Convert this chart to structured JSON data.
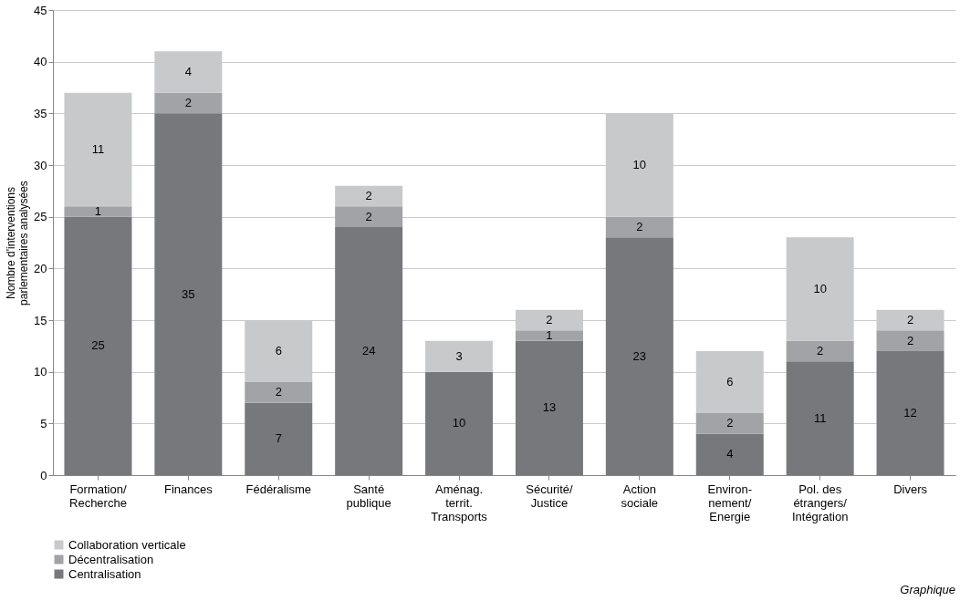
{
  "chart_data": {
    "type": "bar",
    "stacked": true,
    "categories": [
      "Formation/\nRecherche",
      "Finances",
      "Fédéralisme",
      "Santé\npublique",
      "Aménag.\nterrit.\nTransports",
      "Sécurité/\nJustice",
      "Action\nsociale",
      "Environ-\nnement/\nEnergie",
      "Pol. des\nétrangers/\nIntégration",
      "Divers"
    ],
    "series": [
      {
        "name": "Centralisation",
        "color": "#77787b",
        "values": [
          25,
          35,
          7,
          24,
          10,
          13,
          23,
          4,
          11,
          12
        ]
      },
      {
        "name": "Décentralisation",
        "color": "#a2a3a6",
        "values": [
          1,
          2,
          2,
          2,
          null,
          1,
          2,
          2,
          2,
          2
        ]
      },
      {
        "name": "Collaboration verticale",
        "color": "#c8c9cb",
        "values": [
          11,
          4,
          6,
          2,
          3,
          2,
          10,
          6,
          10,
          2
        ]
      }
    ],
    "ylabel": "Nombre d'interventions\nparlementaires analysées",
    "ylim": [
      0,
      45
    ],
    "yticks": [
      0,
      5,
      10,
      15,
      20,
      25,
      30,
      35,
      40,
      45
    ],
    "grid": "y",
    "legend": "bottom left",
    "data_labels": true,
    "annotations": [
      "Graphique"
    ]
  }
}
